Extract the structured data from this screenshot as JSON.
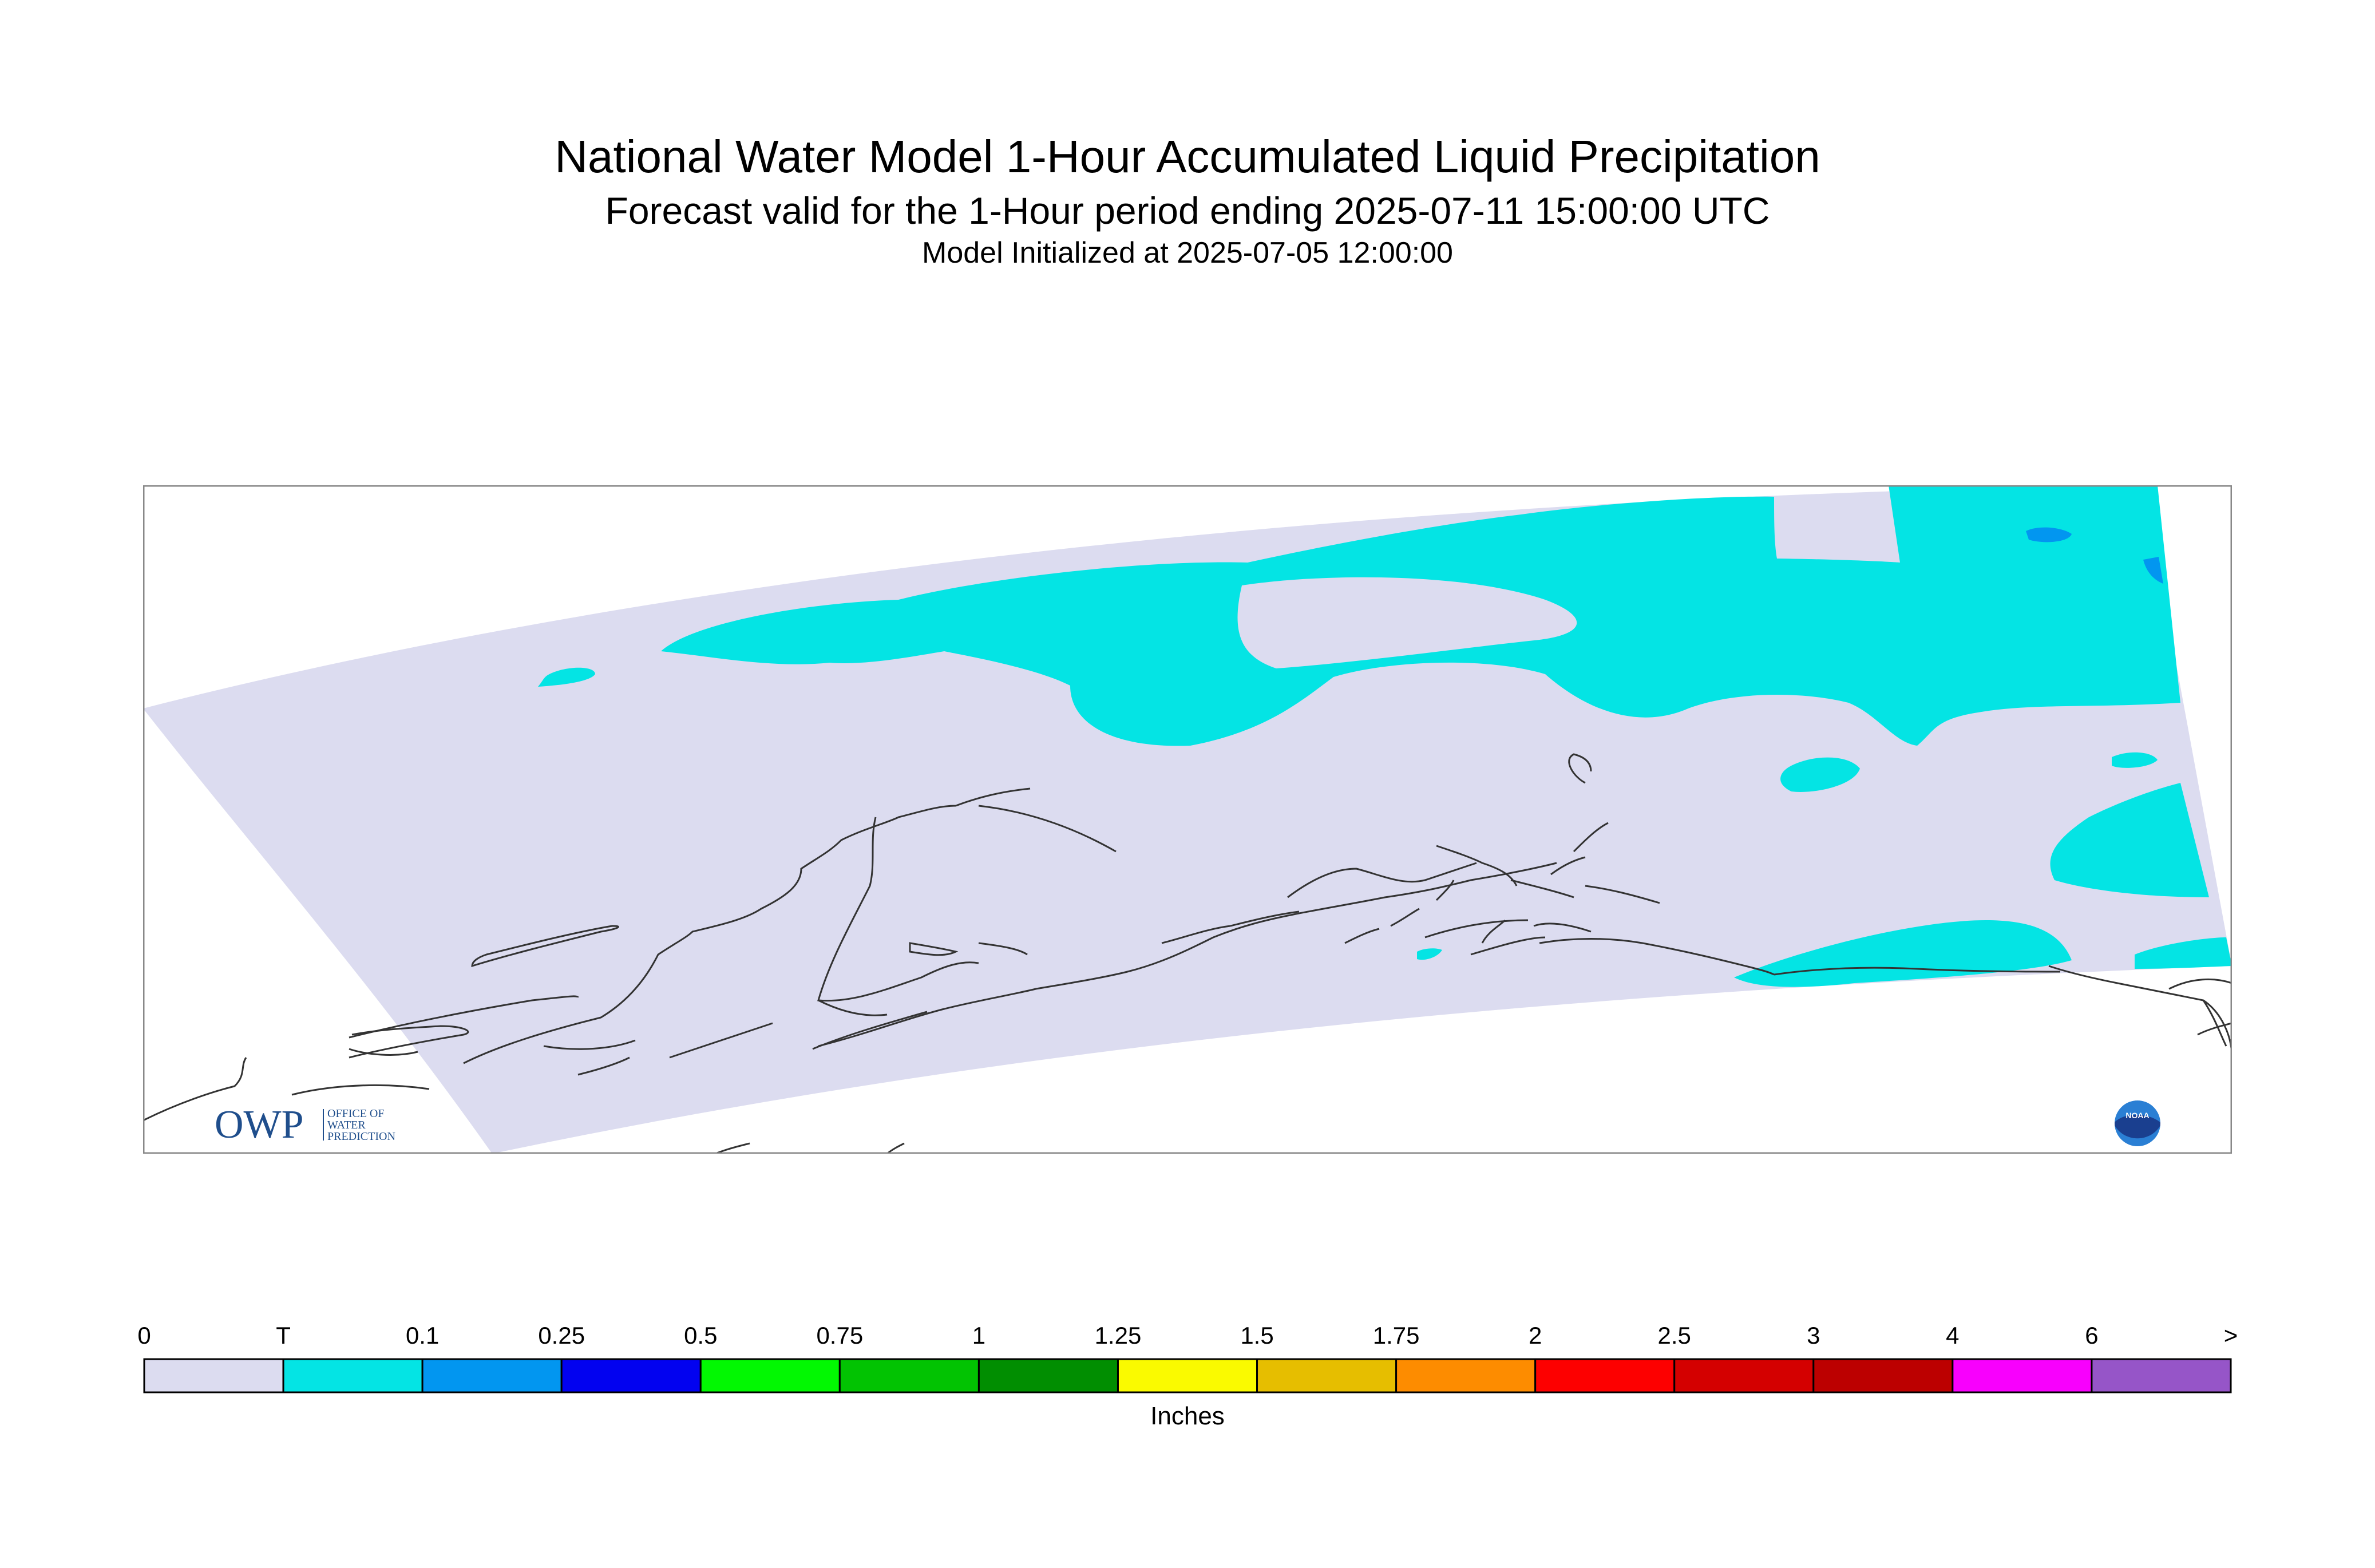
{
  "header": {
    "title": "National Water Model 1-Hour Accumulated Liquid Precipitation",
    "subtitle": "Forecast valid for the 1-Hour period ending 2025-07-11 15:00:00 UTC",
    "init": "Model Initialized at 2025-07-05 12:00:00"
  },
  "logos": {
    "owp_mark": "OWP",
    "owp_lines": [
      "OFFICE OF",
      "WATER",
      "PREDICTION"
    ],
    "noaa": "NOAA"
  },
  "legend": {
    "units": "Inches",
    "labels": [
      "0",
      "T",
      "0.1",
      "0.25",
      "0.5",
      "0.75",
      "1",
      "1.25",
      "1.5",
      "1.75",
      "2",
      "2.5",
      "3",
      "4",
      "6",
      ">"
    ],
    "colors": [
      "#dcdcf0",
      "#04e4e4",
      "#0296f0",
      "#0202f0",
      "#02f802",
      "#02c302",
      "#018e01",
      "#fafa00",
      "#e6be00",
      "#fd8c00",
      "#fd0000",
      "#d40000",
      "#bc0000",
      "#f800fd",
      "#9655c8"
    ]
  },
  "map": {
    "domain_color": "#dcdcf0",
    "trace_color": "#04e4e4",
    "light_color": "#0296f0"
  }
}
